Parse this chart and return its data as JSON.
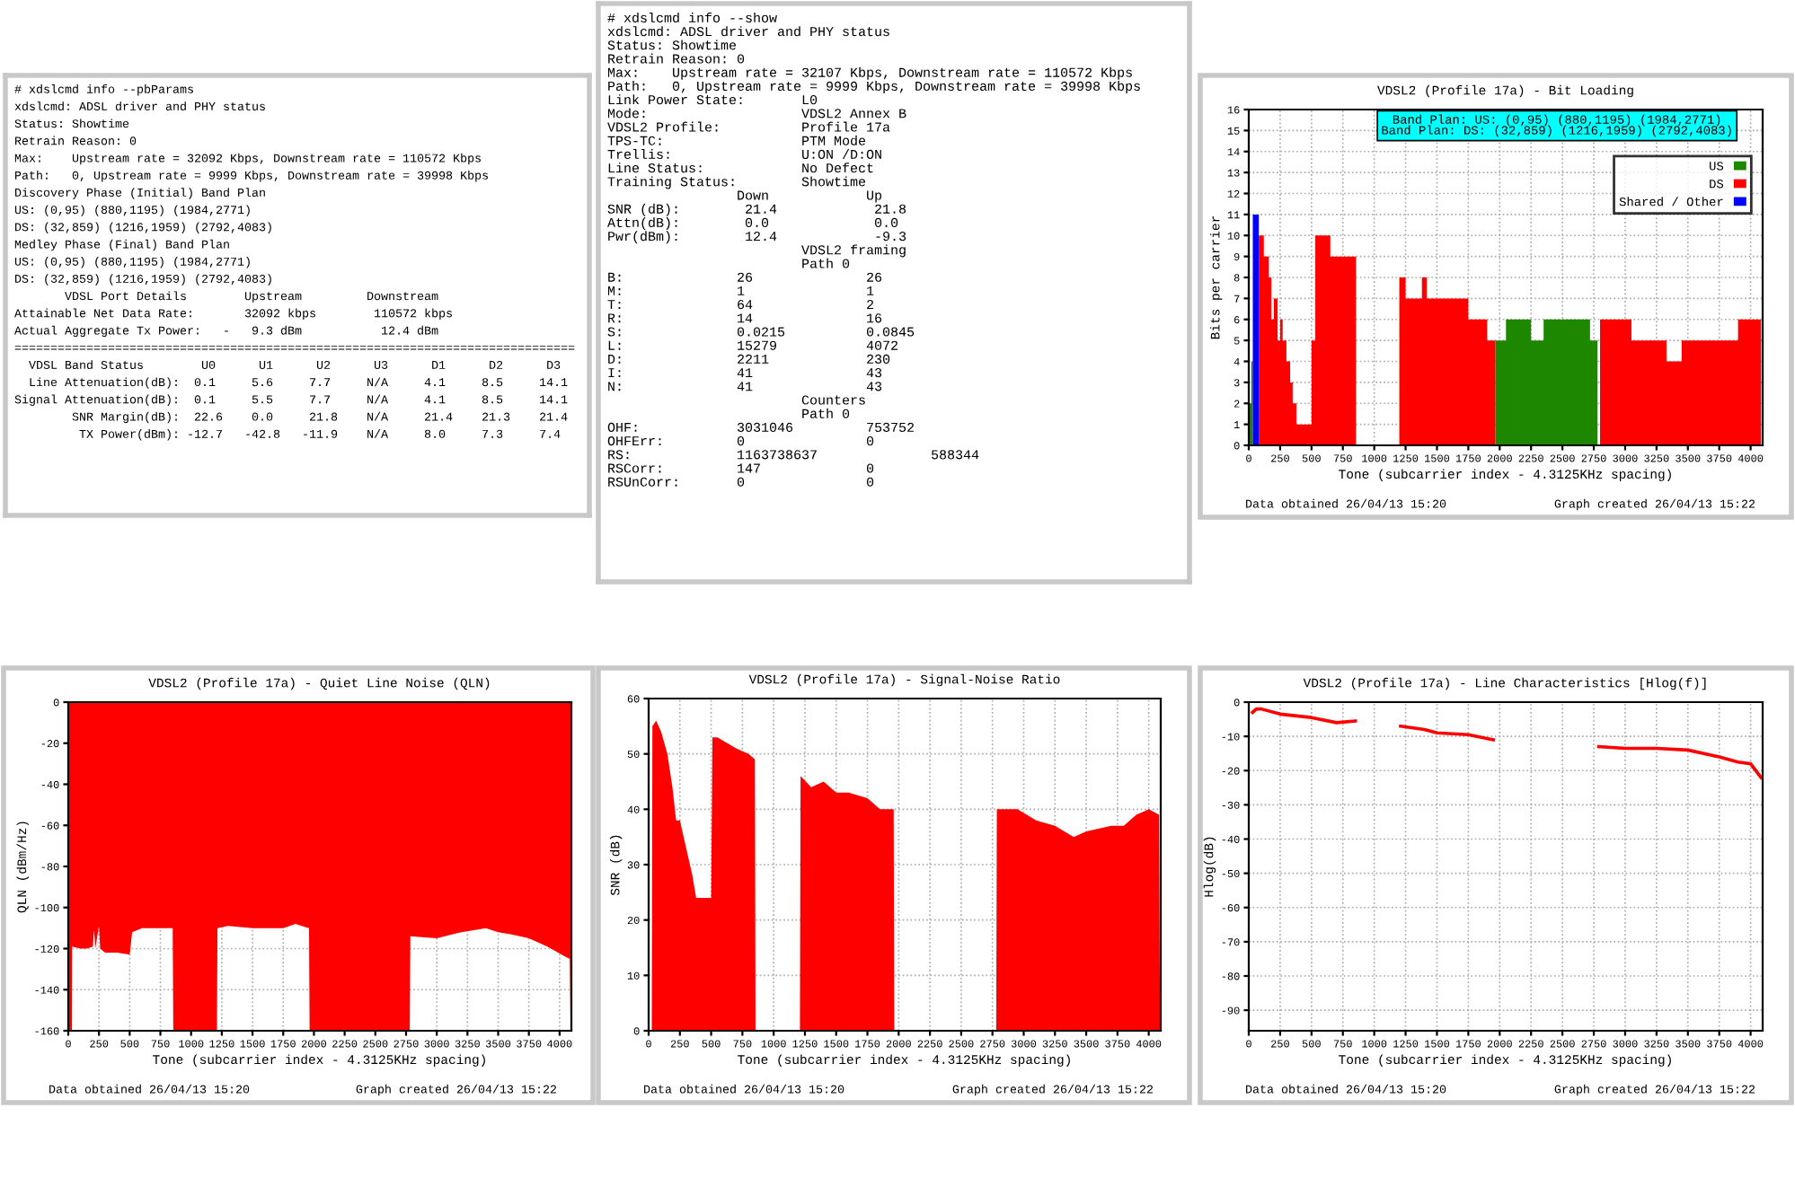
{
  "chart_data": [
    {
      "type": "other",
      "annotations": [
        "# xdslcmd info --pbParams",
        "xdslcmd: ADSL driver and PHY status",
        "Status: Showtime",
        "Retrain Reason: 0",
        "Max:    Upstream rate = 32092 Kbps, Downstream rate = 110572 Kbps",
        "Path:   0, Upstream rate = 9999 Kbps, Downstream rate = 39998 Kbps",
        "Discovery Phase (Initial) Band Plan",
        "US: (0,95) (880,1195) (1984,2771)",
        "DS: (32,859) (1216,1959) (2792,4083)",
        "Medley Phase (Final) Band Plan",
        "US: (0,95) (880,1195) (1984,2771)",
        "DS: (32,859) (1216,1959) (2792,4083)",
        "       VDSL Port Details        Upstream         Downstream",
        "Attainable Net Data Rate:       32092 kbps        110572 kbps",
        "Actual Aggregate Tx Power:   -   9.3 dBm           12.4 dBm",
        "==============================================================================",
        "  VDSL Band Status        U0      U1      U2      U3      D1      D2      D3",
        "  Line Attenuation(dB):  0.1     5.6     7.7     N/A     4.1     8.5     14.1",
        "Signal Attenuation(dB):  0.1     5.5     7.7     N/A     4.1     8.5     14.1",
        "        SNR Margin(dB):  22.6    0.0     21.8    N/A     21.4    21.3    21.4",
        "         TX Power(dBm): -12.7   -42.8   -11.9    N/A     8.0     7.3     7.4"
      ]
    },
    {
      "type": "other",
      "annotations": [
        "# xdslcmd info --show",
        "xdslcmd: ADSL driver and PHY status",
        "Status: Showtime",
        "Retrain Reason: 0",
        "Max:    Upstream rate = 32107 Kbps, Downstream rate = 110572 Kbps",
        "Path:   0, Upstream rate = 9999 Kbps, Downstream rate = 39998 Kbps",
        "Link Power State:       L0",
        "Mode:                   VDSL2 Annex B",
        "VDSL2 Profile:          Profile 17a",
        "TPS-TC:                 PTM Mode",
        "Trellis:                U:ON /D:ON",
        "Line Status:            No Defect",
        "Training Status:        Showtime",
        "                Down            Up",
        "SNR (dB):        21.4            21.8",
        "Attn(dB):        0.0             0.0",
        "Pwr(dBm):        12.4            -9.3",
        "                        VDSL2 framing",
        "                        Path 0",
        "B:              26              26",
        "M:              1               1",
        "T:              64              2",
        "R:              14              16",
        "S:              0.0215          0.0845",
        "L:              15279           4072",
        "D:              2211            230",
        "I:              41              43",
        "N:              41              43",
        "                        Counters",
        "                        Path 0",
        "OHF:            3031046         753752",
        "OHFErr:         0               0",
        "RS:             1163738637              588344",
        "RSCorr:         147             0",
        "RSUnCorr:       0               0"
      ]
    },
    {
      "type": "area",
      "title": "VDSL2 (Profile 17a) - Bit Loading",
      "xlabel": "Tone (subcarrier index - 4.3125KHz spacing)",
      "ylabel": "Bits per carrier",
      "xlim": [
        0,
        4096
      ],
      "xticks": [
        0,
        250,
        500,
        750,
        1000,
        1250,
        1500,
        1750,
        2000,
        2250,
        2500,
        2750,
        3000,
        3250,
        3500,
        3750,
        4000
      ],
      "ylim": [
        0,
        16
      ],
      "yticks": [
        0,
        1,
        2,
        3,
        4,
        5,
        6,
        7,
        8,
        9,
        10,
        11,
        12,
        13,
        14,
        15,
        16
      ],
      "grid": true,
      "legend": "top right",
      "series": [
        {
          "name": "US",
          "color": "#1e8700",
          "x": [
            0,
            20,
            20,
            32,
            32,
            1965,
            1965,
            2050,
            2050,
            2250,
            2250,
            2350,
            2350,
            2720,
            2720,
            2780,
            2780
          ],
          "values": [
            2,
            2,
            4,
            4,
            0,
            0,
            5,
            5,
            6,
            6,
            5,
            5,
            6,
            6,
            5,
            5,
            0
          ]
        },
        {
          "name": "DS",
          "color": "#ff0000",
          "x": [
            80,
            120,
            120,
            160,
            160,
            180,
            180,
            200,
            200,
            230,
            230,
            250,
            250,
            270,
            270,
            300,
            300,
            330,
            330,
            350,
            350,
            380,
            380,
            500,
            500,
            530,
            530,
            650,
            650,
            855,
            855,
            1200,
            1200,
            1250,
            1250,
            1380,
            1380,
            1420,
            1420,
            1750,
            1750,
            1900,
            1900,
            1965,
            1965,
            2800,
            2800,
            3050,
            3050,
            3330,
            3330,
            3450,
            3450,
            3900,
            3900,
            4083
          ],
          "values": [
            10,
            10,
            9,
            9,
            8,
            8,
            6,
            6,
            7,
            7,
            5,
            5,
            6,
            6,
            5,
            5,
            4,
            4,
            3,
            3,
            2,
            2,
            1,
            1,
            5,
            5,
            10,
            10,
            9,
            9,
            0,
            0,
            8,
            8,
            7,
            7,
            8,
            8,
            7,
            7,
            6,
            6,
            5,
            5,
            0,
            0,
            6,
            6,
            5,
            5,
            4,
            4,
            5,
            5,
            6,
            6
          ]
        },
        {
          "name": "Shared / Other",
          "color": "#0000ff",
          "x": [
            32,
            80
          ],
          "values": [
            11,
            11
          ]
        }
      ],
      "annotations": [
        "Band Plan: US: (0,95) (880,1195) (1984,2771)",
        "Band Plan: DS: (32,859) (1216,1959) (2792,4083)",
        "Data obtained 26/04/13 15:20",
        "Graph created 26/04/13 15:22"
      ]
    },
    {
      "type": "area",
      "title": "VDSL2 (Profile 17a) - Quiet Line Noise (QLN)",
      "xlabel": "Tone (subcarrier index - 4.3125KHz spacing)",
      "ylabel": "QLN (dBm/Hz)",
      "xlim": [
        0,
        4096
      ],
      "xticks": [
        0,
        250,
        500,
        750,
        1000,
        1250,
        1500,
        1750,
        2000,
        2250,
        2500,
        2750,
        3000,
        3250,
        3500,
        3750,
        4000
      ],
      "ylim": [
        -160,
        0
      ],
      "yticks": [
        -160,
        -140,
        -120,
        -100,
        -80,
        -60,
        -40,
        -20,
        0
      ],
      "grid": true,
      "series": [
        {
          "color": "#ff0000",
          "x": [
            0,
            30,
            32,
            100,
            150,
            200,
            210,
            220,
            250,
            260,
            300,
            400,
            500,
            520,
            600,
            850,
            855,
            1210,
            1215,
            1300,
            1500,
            1750,
            1850,
            1900,
            1960,
            1965,
            2780,
            2785,
            3000,
            3200,
            3400,
            3500,
            3600,
            3750,
            3900,
            4050,
            4083,
            4090
          ],
          "values": [
            -160,
            -160,
            -119,
            -120,
            -120,
            -119,
            -111,
            -120,
            -109,
            -120,
            -122,
            -122,
            -123,
            -112,
            -110,
            -110,
            -160,
            -160,
            -110,
            -109,
            -110,
            -110,
            -108,
            -109,
            -110,
            -160,
            -160,
            -114,
            -115,
            -112,
            -110,
            -112,
            -113,
            -115,
            -119,
            -124,
            -125,
            -160
          ]
        }
      ],
      "annotations": [
        "Data obtained 26/04/13 15:20",
        "Graph created 26/04/13 15:22"
      ]
    },
    {
      "type": "area",
      "title": "VDSL2 (Profile 17a) - Signal-Noise Ratio",
      "xlabel": "Tone (subcarrier index - 4.3125KHz spacing)",
      "ylabel": "SNR (dB)",
      "xlim": [
        0,
        4096
      ],
      "xticks": [
        0,
        250,
        500,
        750,
        1000,
        1250,
        1500,
        1750,
        2000,
        2250,
        2500,
        2750,
        3000,
        3250,
        3500,
        3750,
        4000
      ],
      "ylim": [
        0,
        60
      ],
      "yticks": [
        0,
        10,
        20,
        30,
        40,
        50,
        60
      ],
      "grid": true,
      "series": [
        {
          "color": "#ff0000",
          "x": [
            25,
            30,
            60,
            100,
            150,
            190,
            220,
            250,
            300,
            350,
            380,
            500,
            510,
            550,
            700,
            800,
            850,
            855,
            1210,
            1215,
            1300,
            1400,
            1500,
            1600,
            1750,
            1850,
            1960,
            1965,
            2780,
            2785,
            2950,
            3100,
            3250,
            3400,
            3500,
            3700,
            3800,
            3900,
            4000,
            4083,
            4090
          ],
          "values": [
            0,
            55,
            56,
            54,
            50,
            44,
            38,
            38,
            33,
            28,
            24,
            24,
            53,
            53,
            51,
            50,
            49,
            0,
            0,
            46,
            44,
            45,
            43,
            43,
            42,
            40,
            40,
            0,
            0,
            40,
            40,
            38,
            37,
            35,
            36,
            37,
            37,
            39,
            40,
            39,
            0
          ]
        }
      ],
      "annotations": [
        "Data obtained 26/04/13 15:20",
        "Graph created 26/04/13 15:22"
      ]
    },
    {
      "type": "line",
      "title": "VDSL2 (Profile 17a) - Line Characteristics [Hlog(f)]",
      "xlabel": "Tone (subcarrier index - 4.3125KHz spacing)",
      "ylabel": "Hlog(dB)",
      "xlim": [
        0,
        4096
      ],
      "xticks": [
        0,
        250,
        500,
        750,
        1000,
        1250,
        1500,
        1750,
        2000,
        2250,
        2500,
        2750,
        3000,
        3250,
        3500,
        3750,
        4000
      ],
      "ylim": [
        -96,
        0
      ],
      "yticks": [
        -90,
        -80,
        -70,
        -60,
        -50,
        -40,
        -30,
        -20,
        -10,
        0
      ],
      "grid": true,
      "series": [
        {
          "color": "#ff0000",
          "x": [
            30,
            60,
            100,
            250,
            500,
            700,
            850,
            1000,
            1210,
            1400,
            1500,
            1750,
            1950,
            2300,
            2790,
            3000,
            3250,
            3500,
            3750,
            3900,
            4000,
            4083
          ],
          "values": [
            -3,
            -2,
            -2,
            -3.5,
            -4.5,
            -6,
            -5.5,
            null,
            -7,
            -8,
            -9,
            -9.5,
            -11,
            null,
            -13,
            -13.5,
            -13.5,
            -14,
            -16,
            -17.5,
            -18,
            -22
          ]
        }
      ],
      "annotations": [
        "Data obtained 26/04/13 15:20",
        "Graph created 26/04/13 15:22"
      ]
    }
  ]
}
